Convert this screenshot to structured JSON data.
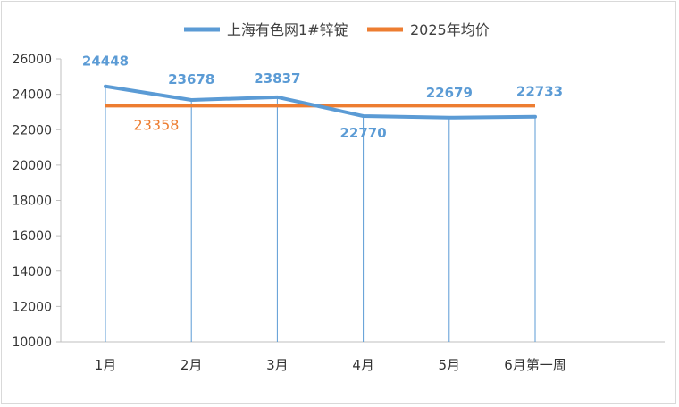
{
  "chart_data": {
    "type": "line",
    "categories": [
      "1月",
      "2月",
      "3月",
      "4月",
      "5月",
      "6月第一周"
    ],
    "series": [
      {
        "name": "上海有色网1#锌锭",
        "values": [
          24448,
          23678,
          23837,
          22770,
          22679,
          22733
        ],
        "color": "#5b9bd5",
        "data_labels": [
          "24448",
          "23678",
          "23837",
          "22770",
          "22679",
          "22733"
        ]
      },
      {
        "name": "2025年均价",
        "values": [
          23358,
          23358,
          23358,
          23358,
          23358,
          23358
        ],
        "color": "#ed7d31",
        "data_label": "23358"
      }
    ],
    "ylim": [
      10000,
      26000
    ],
    "yticks": [
      "10000",
      "12000",
      "14000",
      "16000",
      "18000",
      "20000",
      "22000",
      "24000",
      "26000"
    ],
    "grid": false,
    "legend_position": "top-center"
  }
}
